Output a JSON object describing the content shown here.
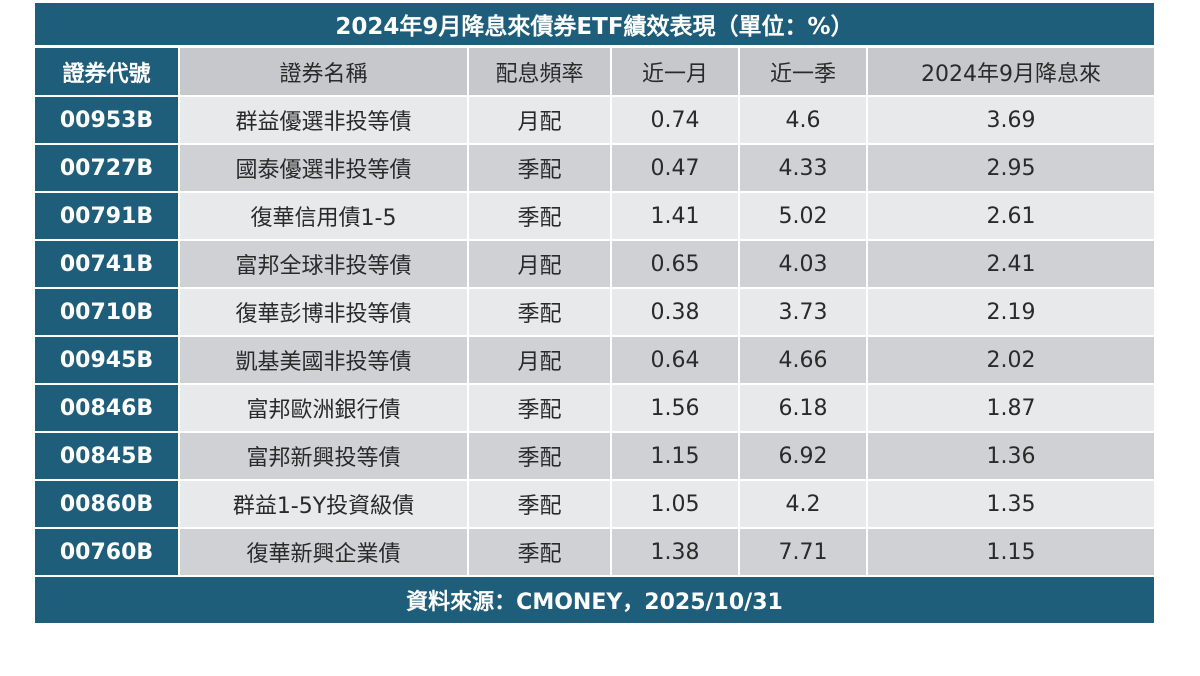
{
  "title": "2024年9月降息來債券ETF績效表現（單位：%）",
  "headers": [
    "證券代號",
    "證券名稱",
    "配息頻率",
    "近一月",
    "近一季",
    "2024年9月降息來"
  ],
  "rows": [
    {
      "code": "00953B",
      "name": "群益優選非投等債",
      "freq": "月配",
      "m1": "0.74",
      "q1": "4.6",
      "since": "3.69"
    },
    {
      "code": "00727B",
      "name": "國泰優選非投等債",
      "freq": "季配",
      "m1": "0.47",
      "q1": "4.33",
      "since": "2.95"
    },
    {
      "code": "00791B",
      "name": "復華信用債1-5",
      "freq": "季配",
      "m1": "1.41",
      "q1": "5.02",
      "since": "2.61"
    },
    {
      "code": "00741B",
      "name": "富邦全球非投等債",
      "freq": "月配",
      "m1": "0.65",
      "q1": "4.03",
      "since": "2.41"
    },
    {
      "code": "00710B",
      "name": "復華彭博非投等債",
      "freq": "季配",
      "m1": "0.38",
      "q1": "3.73",
      "since": "2.19"
    },
    {
      "code": "00945B",
      "name": "凱基美國非投等債",
      "freq": "月配",
      "m1": "0.64",
      "q1": "4.66",
      "since": "2.02"
    },
    {
      "code": "00846B",
      "name": "富邦歐洲銀行債",
      "freq": "季配",
      "m1": "1.56",
      "q1": "6.18",
      "since": "1.87"
    },
    {
      "code": "00845B",
      "name": "富邦新興投等債",
      "freq": "季配",
      "m1": "1.15",
      "q1": "6.92",
      "since": "1.36"
    },
    {
      "code": "00860B",
      "name": "群益1-5Y投資級債",
      "freq": "季配",
      "m1": "1.05",
      "q1": "4.2",
      "since": "1.35"
    },
    {
      "code": "00760B",
      "name": "復華新興企業債",
      "freq": "季配",
      "m1": "1.38",
      "q1": "7.71",
      "since": "1.15"
    }
  ],
  "footer": "資料來源：CMONEY，2025/10/31",
  "colors": {
    "header_blue": "#1e5e7a",
    "row_light": "#e8e9eb",
    "row_dark": "#cfd1d5",
    "head_gray": "#c6c8cc"
  }
}
